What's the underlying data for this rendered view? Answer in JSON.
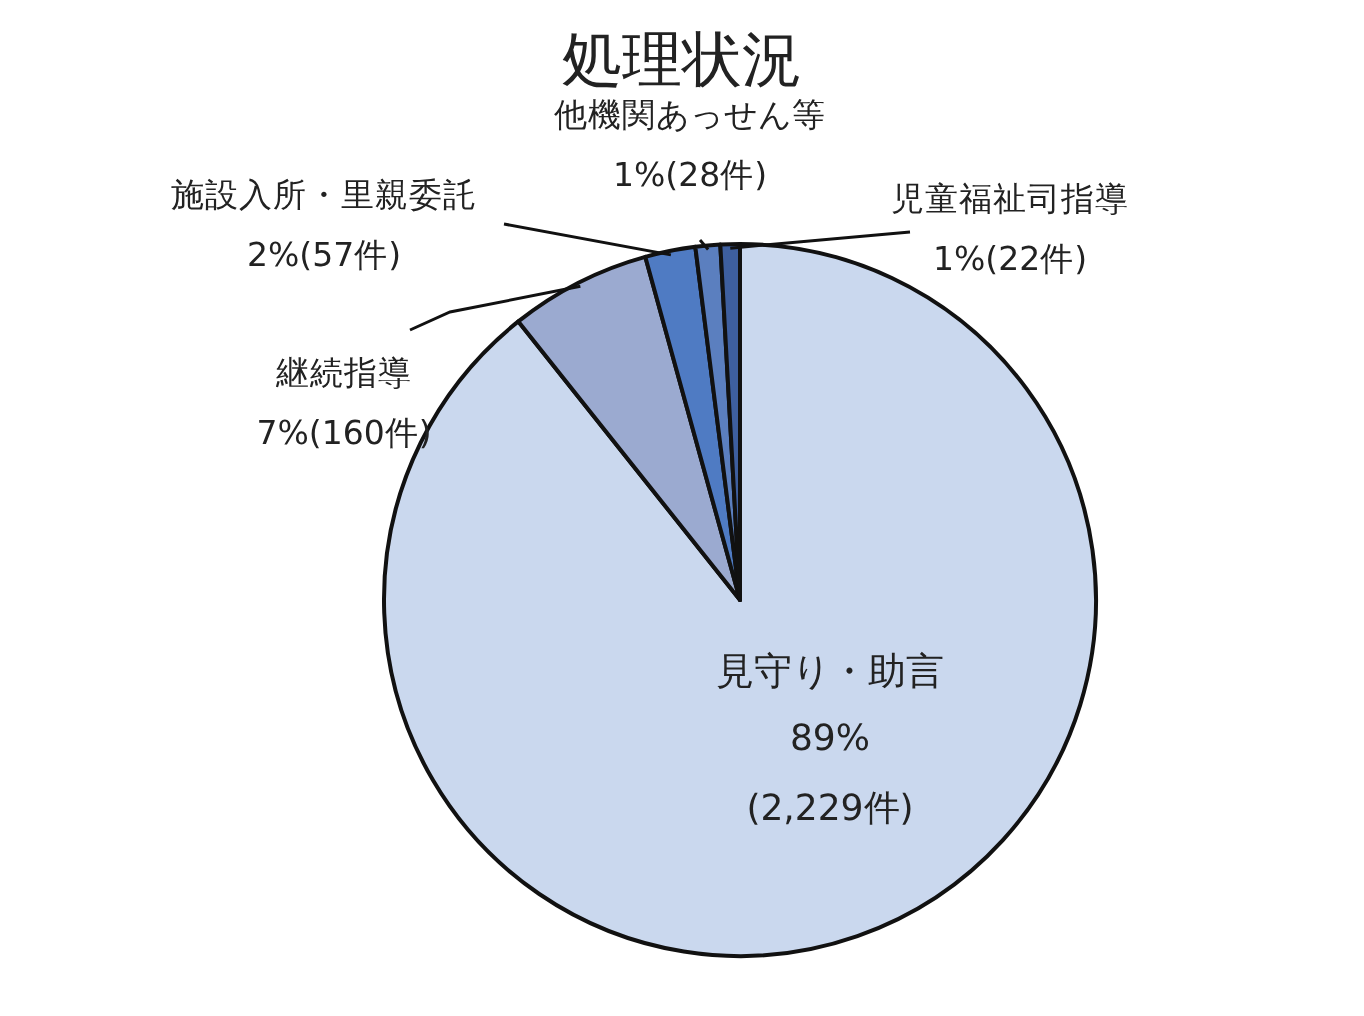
{
  "chart_data": {
    "type": "pie",
    "title": "処理状況",
    "categories": [
      "見守り・助言",
      "継続指導",
      "施設入所・里親委託",
      "他機関あっせん等",
      "児童福祉司指導"
    ],
    "values": [
      2229,
      160,
      57,
      28,
      22
    ],
    "value_labels": [
      "89%(2,229件)",
      "7%(160件)",
      "2%(57件)",
      "1%(28件)",
      "1%(22件)"
    ],
    "colors": [
      "#cad8ee",
      "#9baad0",
      "#4f7bc3",
      "#5b7fbf",
      "#3e5f9f"
    ]
  }
}
